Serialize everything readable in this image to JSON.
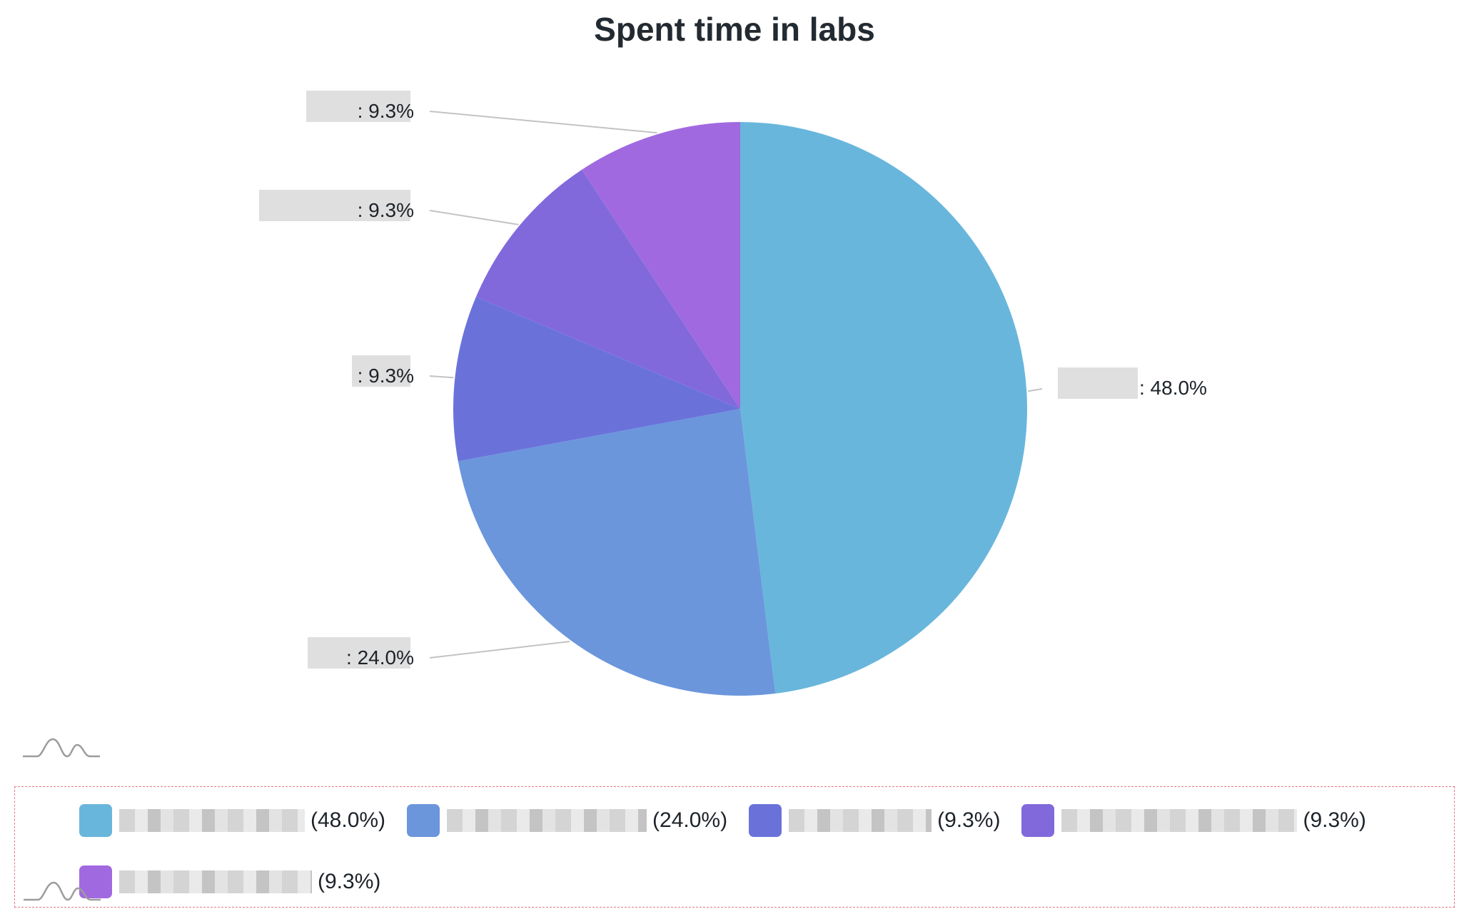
{
  "chart_data": {
    "type": "pie",
    "title": "Spent time in labs",
    "slices": [
      {
        "label": "",
        "value": 48.0,
        "pct_label": ": 48.0%",
        "legend_pct": "(48.0%)",
        "color": "#69b6dc",
        "label_side": "right"
      },
      {
        "label": "",
        "value": 24.0,
        "pct_label": ": 24.0%",
        "legend_pct": "(24.0%)",
        "color": "#6b96dc",
        "label_side": "left"
      },
      {
        "label": "",
        "value": 9.3,
        "pct_label": ": 9.3%",
        "legend_pct": "(9.3%)",
        "color": "#6a72da",
        "label_side": "left"
      },
      {
        "label": "",
        "value": 9.3,
        "pct_label": ": 9.3%",
        "legend_pct": "(9.3%)",
        "color": "#8169dc",
        "label_side": "left"
      },
      {
        "label": "",
        "value": 9.3,
        "pct_label": ": 9.3%",
        "legend_pct": "(9.3%)",
        "color": "#a169e0",
        "label_side": "left"
      }
    ],
    "legend_placement": "bottom"
  },
  "icons": {
    "chart_mark": "wave-logo-icon"
  }
}
